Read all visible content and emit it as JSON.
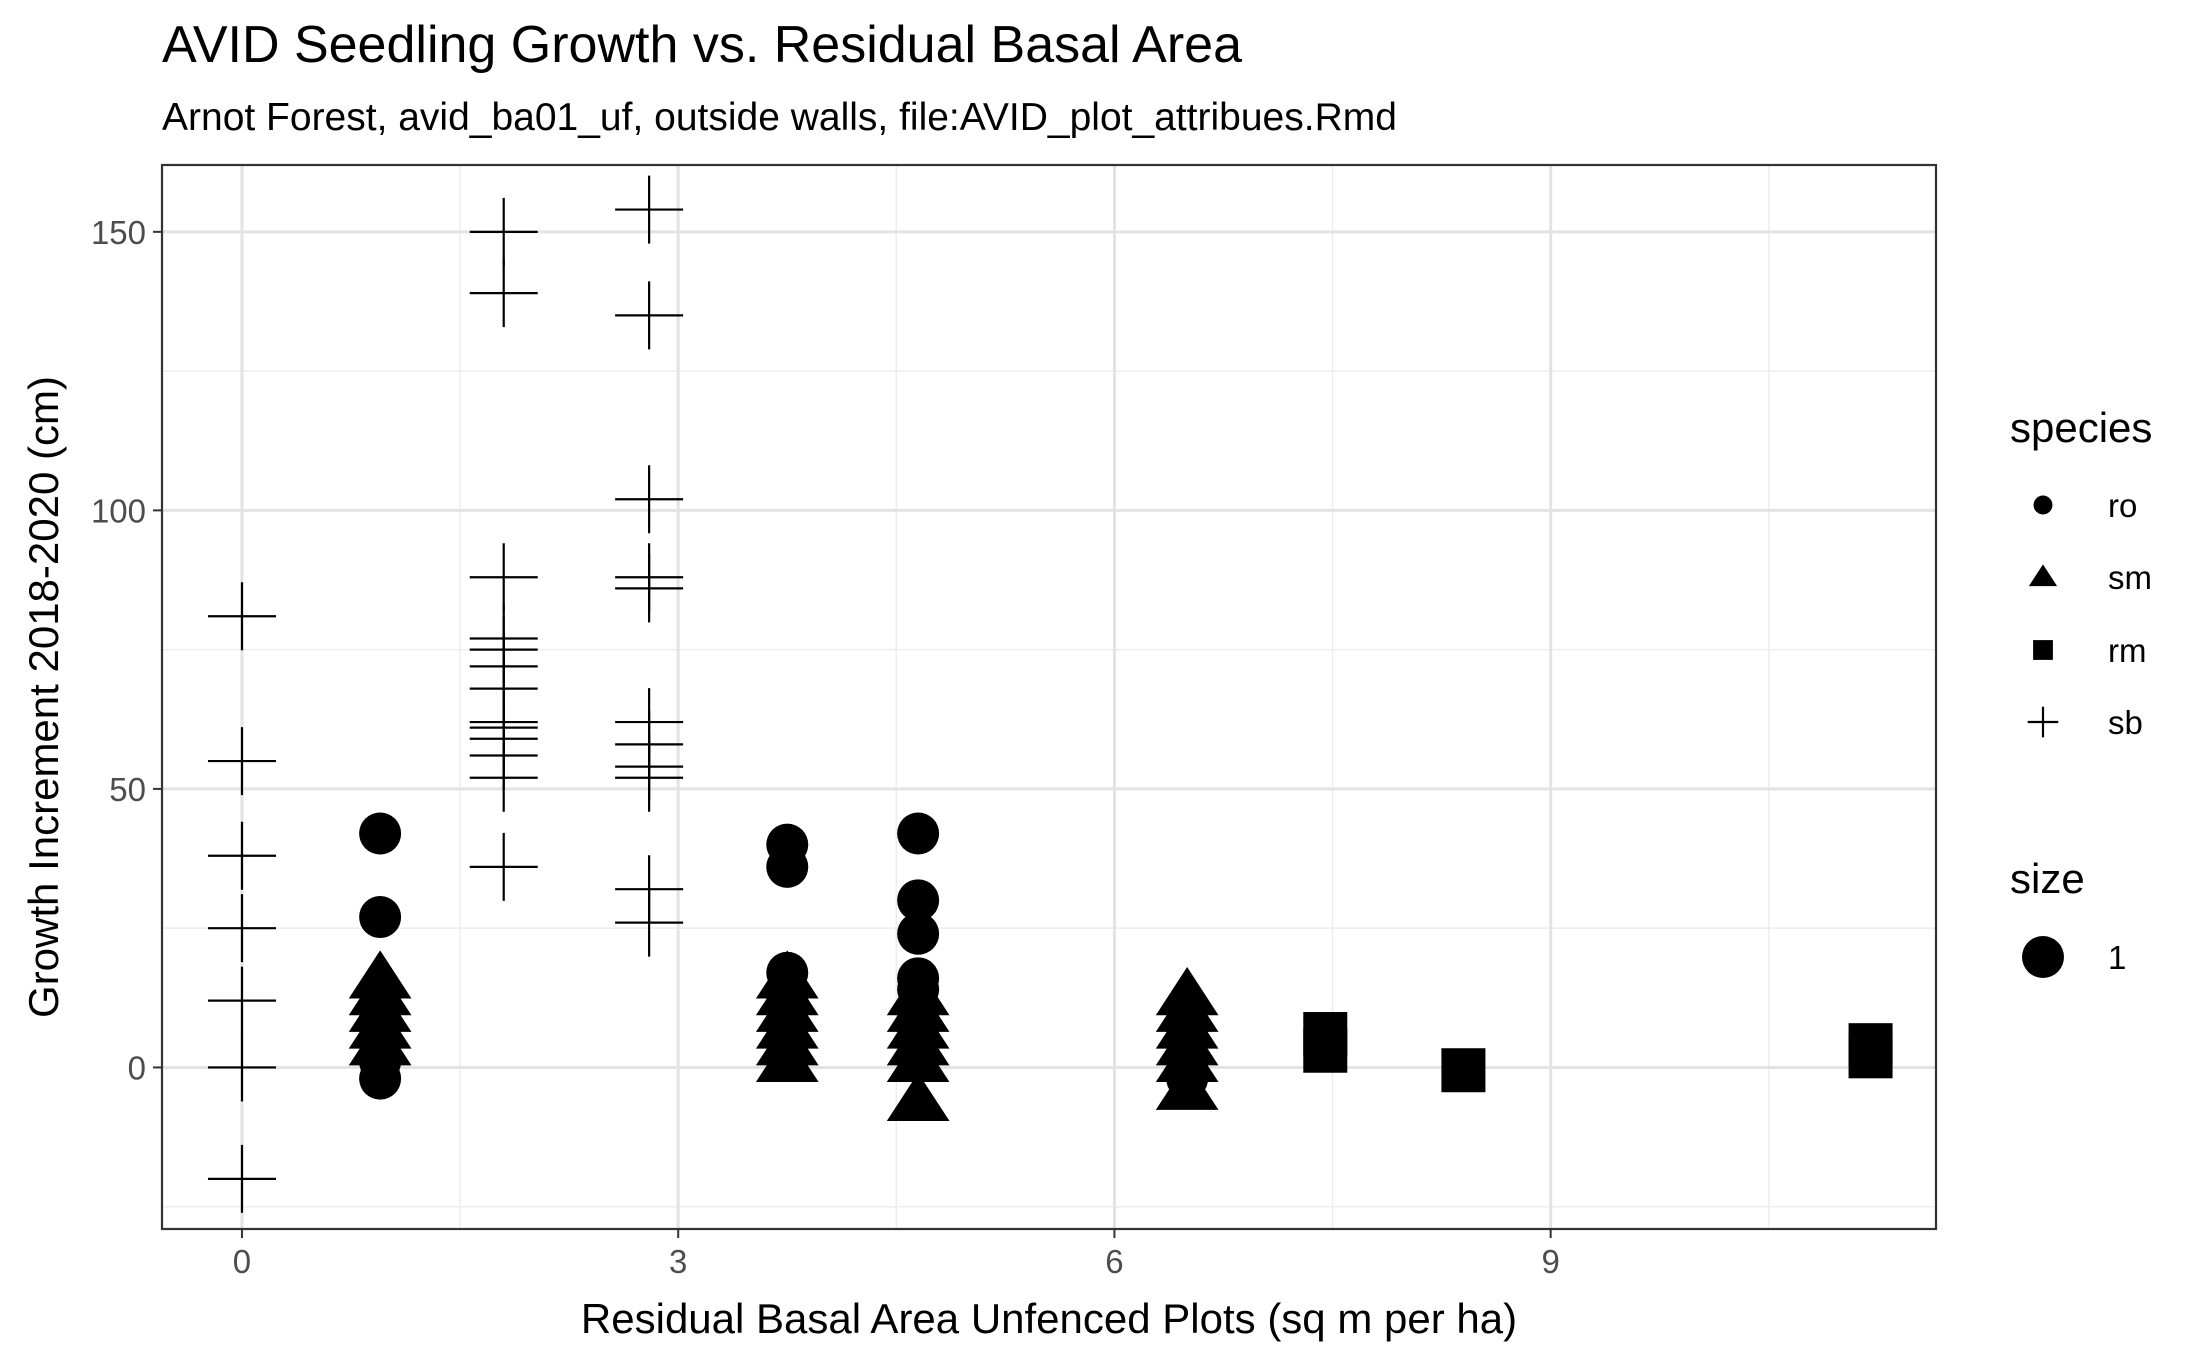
{
  "chart_data": {
    "type": "scatter",
    "title": "AVID Seedling Growth vs. Residual Basal Area",
    "subtitle": "Arnot Forest, avid_ba01_uf, outside walls, file:AVID_plot_attribues.Rmd",
    "xlabel": "Residual Basal Area Unfenced Plots (sq m per ha)",
    "ylabel": "Growth Increment 2018-2020 (cm)",
    "xlim": [
      -0.55,
      11.65
    ],
    "ylim": [
      -29,
      162
    ],
    "xticks": [
      0,
      3,
      6,
      9
    ],
    "xtick_labels": [
      "0",
      "3",
      "6",
      "9"
    ],
    "yticks": [
      0,
      50,
      100,
      150
    ],
    "ytick_labels": [
      "0",
      "50",
      "100",
      "150"
    ],
    "grid": true,
    "legend_position": "right",
    "legend": {
      "species_title": "species",
      "size_title": "size",
      "size_label": "1",
      "entries": [
        {
          "label": "ro",
          "shape": "circle"
        },
        {
          "label": "sm",
          "shape": "triangle"
        },
        {
          "label": "rm",
          "shape": "square"
        },
        {
          "label": "sb",
          "shape": "plus"
        }
      ]
    },
    "series": [
      {
        "name": "sb",
        "shape": "plus",
        "points": [
          [
            0,
            81
          ],
          [
            0,
            55
          ],
          [
            0,
            38
          ],
          [
            0,
            25
          ],
          [
            0,
            12
          ],
          [
            0,
            0
          ],
          [
            0,
            -20
          ],
          [
            1.8,
            150
          ],
          [
            1.8,
            139
          ],
          [
            1.8,
            88
          ],
          [
            1.8,
            77
          ],
          [
            1.8,
            75
          ],
          [
            1.8,
            72
          ],
          [
            1.8,
            68
          ],
          [
            1.8,
            62
          ],
          [
            1.8,
            61
          ],
          [
            1.8,
            59
          ],
          [
            1.8,
            56
          ],
          [
            1.8,
            52
          ],
          [
            1.8,
            36
          ],
          [
            2.8,
            154
          ],
          [
            2.8,
            135
          ],
          [
            2.8,
            102
          ],
          [
            2.8,
            88
          ],
          [
            2.8,
            86
          ],
          [
            2.8,
            62
          ],
          [
            2.8,
            58
          ],
          [
            2.8,
            54
          ],
          [
            2.8,
            52
          ],
          [
            2.8,
            32
          ],
          [
            2.8,
            26
          ]
        ]
      },
      {
        "name": "sm",
        "shape": "triangle",
        "points": [
          [
            0.95,
            16
          ],
          [
            0.95,
            13
          ],
          [
            0.95,
            10
          ],
          [
            0.95,
            7
          ],
          [
            0.95,
            4
          ],
          [
            3.75,
            16
          ],
          [
            3.75,
            13
          ],
          [
            3.75,
            10
          ],
          [
            3.75,
            7
          ],
          [
            3.75,
            4
          ],
          [
            3.75,
            1
          ],
          [
            4.65,
            13
          ],
          [
            4.65,
            10
          ],
          [
            4.65,
            7
          ],
          [
            4.65,
            4
          ],
          [
            4.65,
            1
          ],
          [
            4.65,
            -6
          ],
          [
            6.5,
            13
          ],
          [
            6.5,
            10
          ],
          [
            6.5,
            7
          ],
          [
            6.5,
            4
          ],
          [
            6.5,
            1
          ],
          [
            6.5,
            -4
          ]
        ]
      },
      {
        "name": "ro",
        "shape": "circle",
        "points": [
          [
            0.95,
            42
          ],
          [
            0.95,
            27
          ],
          [
            0.95,
            10
          ],
          [
            0.95,
            5
          ],
          [
            0.95,
            1
          ],
          [
            0.95,
            -2
          ],
          [
            3.75,
            40
          ],
          [
            3.75,
            36
          ],
          [
            3.75,
            17
          ],
          [
            3.75,
            12
          ],
          [
            3.75,
            7
          ],
          [
            4.65,
            42
          ],
          [
            4.65,
            30
          ],
          [
            4.65,
            24
          ],
          [
            4.65,
            16
          ],
          [
            4.65,
            14
          ],
          [
            4.65,
            10
          ],
          [
            4.65,
            6
          ],
          [
            4.65,
            2
          ],
          [
            6.5,
            5
          ],
          [
            6.5,
            1
          ],
          [
            6.5,
            -2
          ]
        ]
      },
      {
        "name": "rm",
        "shape": "square",
        "points": [
          [
            7.45,
            6
          ],
          [
            7.45,
            3
          ],
          [
            8.4,
            -0.5
          ],
          [
            11.2,
            4
          ],
          [
            11.2,
            2
          ]
        ]
      }
    ]
  }
}
